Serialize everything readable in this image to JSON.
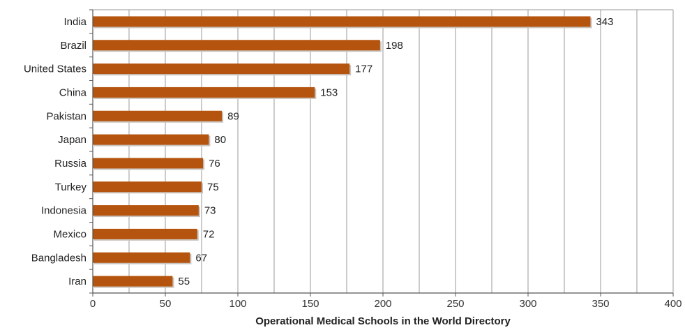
{
  "chart_data": {
    "type": "bar",
    "orientation": "horizontal",
    "categories": [
      "India",
      "Brazil",
      "United States",
      "China",
      "Pakistan",
      "Japan",
      "Russia",
      "Turkey",
      "Indonesia",
      "Mexico",
      "Bangladesh",
      "Iran"
    ],
    "values": [
      343,
      198,
      177,
      153,
      89,
      80,
      76,
      75,
      73,
      72,
      67,
      55
    ],
    "xlabel": "Operational Medical Schools in the World Directory",
    "ylabel": "",
    "xlim": [
      0,
      400
    ],
    "xticks": [
      0,
      50,
      100,
      150,
      200,
      250,
      300,
      350,
      400
    ],
    "grid": true,
    "data_labels": true,
    "bar_color": "#b5540f"
  }
}
